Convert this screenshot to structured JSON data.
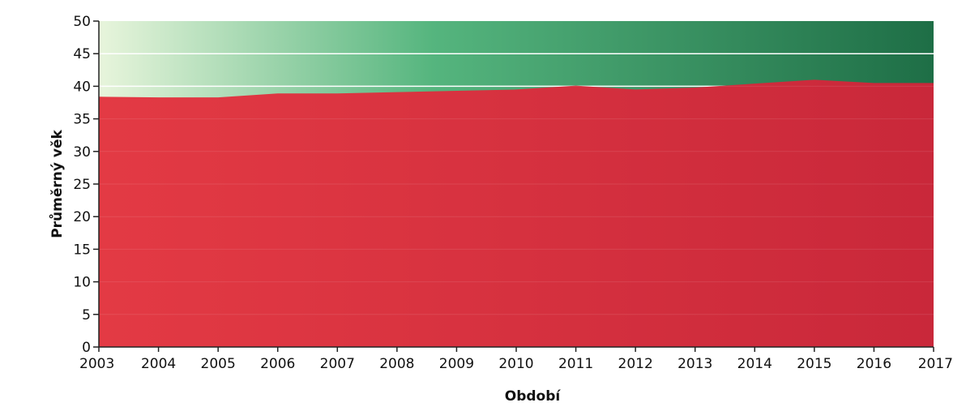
{
  "chart_data": {
    "type": "area",
    "xlabel": "Období",
    "ylabel": "Průměrný věk",
    "x": [
      "2003",
      "2004",
      "2005",
      "2006",
      "2007",
      "2008",
      "2009",
      "2010",
      "2011",
      "2012",
      "2013",
      "2014",
      "2015",
      "2016",
      "2017"
    ],
    "series": [
      {
        "values": [
          38.4,
          38.3,
          38.3,
          38.9,
          38.9,
          39.1,
          39.3,
          39.5,
          40.1,
          39.5,
          39.8,
          40.4,
          41.0,
          40.5,
          40.5
        ]
      }
    ],
    "ylim": [
      0,
      50
    ],
    "yticks": [
      "0",
      "5",
      "10",
      "15",
      "20",
      "25",
      "30",
      "35",
      "40",
      "45",
      "50"
    ],
    "grid": true,
    "legend": "none",
    "colors": {
      "area": "#d92f3b",
      "bg_light": "#e8f5dc",
      "bg_mid": "#55b57e",
      "bg_dark": "#1e6e46",
      "gridline": "#ffffff"
    }
  }
}
